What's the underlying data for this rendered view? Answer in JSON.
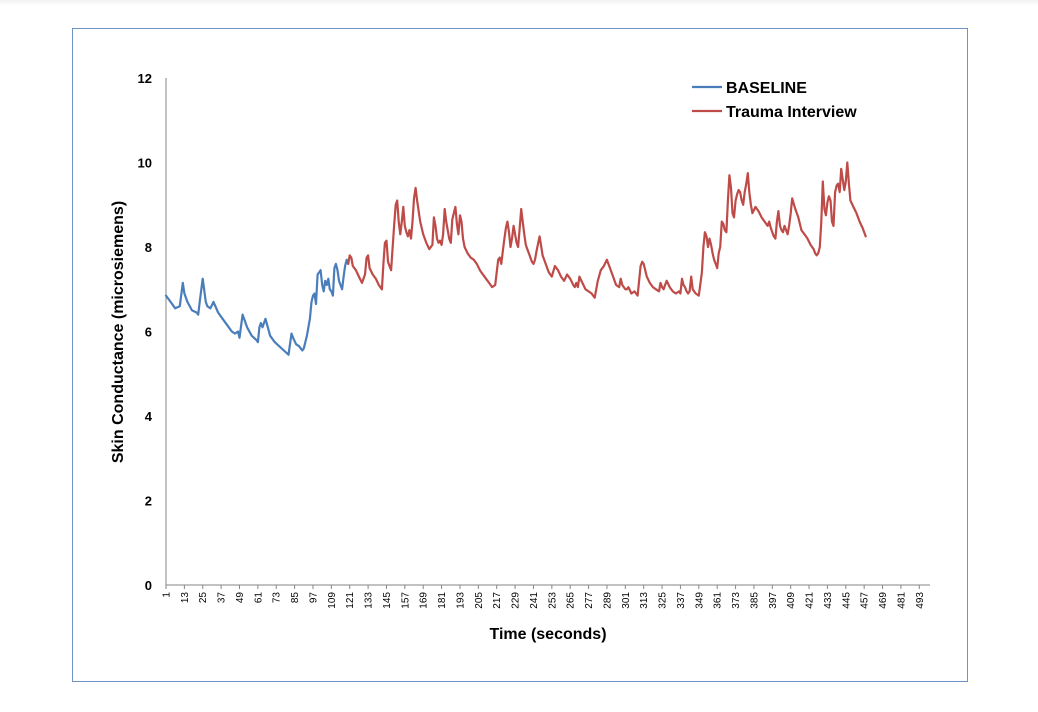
{
  "chart_data": {
    "type": "line",
    "title": "",
    "xlabel": "Time (seconds)",
    "ylabel": "Skin Conductance (microsiemens)",
    "ylim": [
      0,
      12
    ],
    "yticks": [
      "0",
      "2",
      "4",
      "6",
      "8",
      "10",
      "12"
    ],
    "xlim": [
      1,
      500
    ],
    "xticks": [
      "1",
      "13",
      "25",
      "37",
      "49",
      "61",
      "73",
      "85",
      "97",
      "109",
      "121",
      "133",
      "145",
      "157",
      "169",
      "181",
      "193",
      "205",
      "217",
      "229",
      "241",
      "253",
      "265",
      "277",
      "289",
      "301",
      "313",
      "325",
      "337",
      "349",
      "361",
      "373",
      "385",
      "397",
      "409",
      "421",
      "433",
      "445",
      "457",
      "469",
      "481",
      "493"
    ],
    "grid": false,
    "legend_position": "top-right",
    "series": [
      {
        "name": "BASELINE",
        "color": "#4a7ebb",
        "x": [
          1,
          4,
          7,
          10,
          12,
          13,
          15,
          18,
          21,
          22,
          23,
          25,
          27,
          28,
          30,
          32,
          35,
          38,
          42,
          44,
          46,
          48,
          49,
          51,
          54,
          57,
          60,
          61,
          62,
          63,
          64,
          66,
          69,
          72,
          75,
          78,
          81,
          83,
          84,
          86,
          88,
          90,
          91,
          93,
          95,
          96,
          97,
          98,
          99,
          100,
          102,
          103,
          104,
          105,
          106,
          107,
          108,
          109,
          110,
          111,
          112,
          113,
          114,
          115,
          116,
          117,
          118,
          119,
          120
        ],
        "y": [
          6.85,
          6.7,
          6.55,
          6.6,
          7.15,
          6.9,
          6.7,
          6.5,
          6.45,
          6.4,
          6.7,
          7.25,
          6.7,
          6.6,
          6.55,
          6.7,
          6.45,
          6.3,
          6.1,
          6.0,
          5.95,
          6.0,
          5.85,
          6.4,
          6.1,
          5.9,
          5.8,
          5.75,
          6.1,
          6.2,
          6.1,
          6.3,
          5.9,
          5.75,
          5.65,
          5.55,
          5.45,
          5.95,
          5.85,
          5.7,
          5.65,
          5.55,
          5.6,
          5.9,
          6.3,
          6.7,
          6.85,
          6.9,
          6.65,
          7.35,
          7.45,
          7.1,
          6.95,
          7.2,
          7.1,
          7.25,
          7.0,
          6.95,
          6.85,
          7.5,
          7.6,
          7.45,
          7.2,
          7.1,
          7.0,
          7.3,
          7.55,
          7.7,
          7.6
        ]
      },
      {
        "name": "Trauma Interview",
        "color": "#be4b48",
        "x": [
          120,
          121,
          122,
          123,
          125,
          127,
          129,
          131,
          132,
          133,
          134,
          136,
          138,
          140,
          142,
          143,
          144,
          145,
          146,
          147,
          148,
          150,
          151,
          152,
          153,
          154,
          155,
          156,
          157,
          158,
          159,
          160,
          161,
          162,
          163,
          164,
          165,
          167,
          169,
          171,
          173,
          175,
          176,
          177,
          178,
          179,
          180,
          181,
          182,
          183,
          184,
          185,
          186,
          187,
          188,
          189,
          190,
          191,
          192,
          193,
          194,
          195,
          196,
          198,
          200,
          202,
          204,
          206,
          208,
          210,
          212,
          214,
          216,
          218,
          219,
          220,
          221,
          222,
          223,
          224,
          225,
          226,
          227,
          228,
          229,
          230,
          231,
          232,
          233,
          234,
          235,
          236,
          237,
          238,
          239,
          240,
          241,
          242,
          243,
          245,
          247,
          249,
          250,
          251,
          252,
          253,
          255,
          257,
          259,
          261,
          263,
          265,
          267,
          268,
          269,
          270,
          271,
          273,
          275,
          277,
          279,
          281,
          283,
          285,
          287,
          289,
          291,
          293,
          295,
          297,
          298,
          299,
          300,
          301,
          302,
          303,
          305,
          307,
          309,
          311,
          312,
          313,
          315,
          317,
          319,
          321,
          323,
          324,
          325,
          326,
          327,
          328,
          330,
          332,
          334,
          336,
          337,
          338,
          339,
          340,
          341,
          342,
          343,
          344,
          345,
          346,
          347,
          349,
          351,
          352,
          353,
          354,
          355,
          356,
          357,
          358,
          359,
          360,
          361,
          362,
          363,
          364,
          365,
          366,
          367,
          368,
          369,
          370,
          371,
          372,
          373,
          374,
          375,
          376,
          377,
          378,
          379,
          380,
          381,
          382,
          383,
          384,
          386,
          388,
          390,
          392,
          393,
          394,
          395,
          396,
          397,
          398,
          399,
          400,
          401,
          402,
          403,
          404,
          405,
          406,
          407,
          408,
          409,
          410,
          412,
          414,
          416,
          418,
          420,
          422,
          424,
          425,
          426,
          427,
          428,
          429,
          430,
          431,
          432,
          433,
          434,
          435,
          436,
          437,
          438,
          439,
          440,
          441,
          442,
          443,
          444,
          445,
          446,
          447,
          448,
          450,
          452,
          454,
          456,
          458
        ],
        "y": [
          7.6,
          7.8,
          7.75,
          7.55,
          7.45,
          7.3,
          7.15,
          7.35,
          7.75,
          7.8,
          7.5,
          7.35,
          7.25,
          7.1,
          7.0,
          7.6,
          8.1,
          8.15,
          7.65,
          7.55,
          7.45,
          8.5,
          9.0,
          9.1,
          8.6,
          8.3,
          8.6,
          8.95,
          8.5,
          8.35,
          8.25,
          8.4,
          8.2,
          8.6,
          9.15,
          9.4,
          9.1,
          8.6,
          8.3,
          8.1,
          7.95,
          8.05,
          8.7,
          8.5,
          8.2,
          8.1,
          8.15,
          8.05,
          8.3,
          8.9,
          8.6,
          8.4,
          8.2,
          8.1,
          8.65,
          8.8,
          8.95,
          8.55,
          8.3,
          8.75,
          8.6,
          8.2,
          8.0,
          7.85,
          7.75,
          7.7,
          7.6,
          7.45,
          7.35,
          7.25,
          7.15,
          7.05,
          7.1,
          7.7,
          7.75,
          7.6,
          7.9,
          8.2,
          8.45,
          8.6,
          8.35,
          8.0,
          8.2,
          8.5,
          8.3,
          8.1,
          8.0,
          8.45,
          8.9,
          8.6,
          8.3,
          8.05,
          7.95,
          7.85,
          7.75,
          7.65,
          7.6,
          7.7,
          7.9,
          8.25,
          7.8,
          7.6,
          7.5,
          7.4,
          7.35,
          7.3,
          7.55,
          7.45,
          7.3,
          7.2,
          7.35,
          7.25,
          7.1,
          7.05,
          7.15,
          7.05,
          7.3,
          7.15,
          7.0,
          6.95,
          6.9,
          6.8,
          7.2,
          7.45,
          7.55,
          7.7,
          7.5,
          7.3,
          7.1,
          7.05,
          7.25,
          7.1,
          7.05,
          7.0,
          7.0,
          7.05,
          6.9,
          6.95,
          6.85,
          7.55,
          7.65,
          7.6,
          7.3,
          7.15,
          7.05,
          7.0,
          6.95,
          7.15,
          7.05,
          7.0,
          7.1,
          7.2,
          7.05,
          6.95,
          6.9,
          6.95,
          6.9,
          7.25,
          7.1,
          7.05,
          6.95,
          6.9,
          6.95,
          7.3,
          7.0,
          6.95,
          6.9,
          6.85,
          7.4,
          8.0,
          8.35,
          8.25,
          8.0,
          8.2,
          8.05,
          7.85,
          7.7,
          7.6,
          7.5,
          7.85,
          8.0,
          8.6,
          8.55,
          8.4,
          8.35,
          9.1,
          9.7,
          9.4,
          8.8,
          8.7,
          9.1,
          9.25,
          9.35,
          9.3,
          9.1,
          9.0,
          9.3,
          9.5,
          9.75,
          9.3,
          9.0,
          8.8,
          8.95,
          8.85,
          8.7,
          8.6,
          8.55,
          8.5,
          8.6,
          8.45,
          8.35,
          8.25,
          8.2,
          8.6,
          8.85,
          8.5,
          8.4,
          8.35,
          8.5,
          8.4,
          8.3,
          8.5,
          8.8,
          9.15,
          8.9,
          8.7,
          8.4,
          8.3,
          8.2,
          8.05,
          7.95,
          7.85,
          7.8,
          7.85,
          8.0,
          8.6,
          9.55,
          8.9,
          8.75,
          9.05,
          9.2,
          9.1,
          8.6,
          8.5,
          9.3,
          9.45,
          9.5,
          9.3,
          9.85,
          9.6,
          9.35,
          9.55,
          10.0,
          9.5,
          9.1,
          8.95,
          8.8,
          8.6,
          8.45,
          8.25
        ]
      }
    ]
  }
}
